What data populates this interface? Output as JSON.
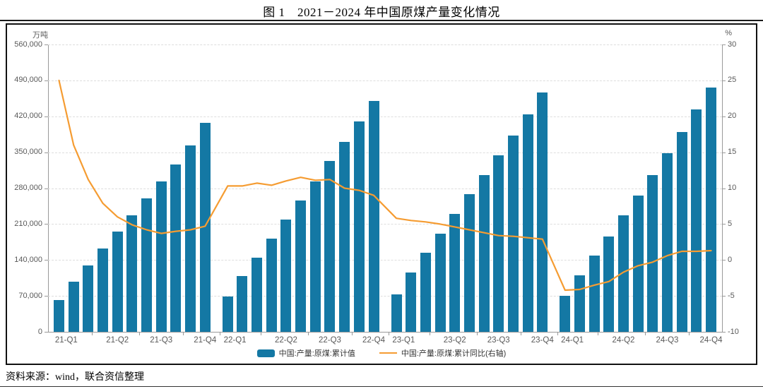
{
  "page": {
    "title": "图 1　2021－2024 年中国原煤产量变化情况",
    "source_note": "资料来源：wind，联合资信整理"
  },
  "chart_data": {
    "type": "combo-bar-line",
    "title": "图 1　2021－2024 年中国原煤产量变化情况",
    "grid": true,
    "legend_position": "bottom",
    "left_axis": {
      "unit": "万吨",
      "min": 0,
      "max": 560000,
      "ticks": [
        0,
        70000,
        140000,
        210000,
        280000,
        350000,
        420000,
        490000,
        560000
      ]
    },
    "right_axis": {
      "unit": "%",
      "min": -10,
      "max": 30,
      "ticks": [
        -10,
        -5,
        0,
        5,
        10,
        15,
        20,
        25,
        30
      ]
    },
    "x_tick_labels": [
      "21-Q1",
      "21-Q2",
      "21-Q3",
      "21-Q4",
      "22-Q1",
      "22-Q2",
      "22-Q3",
      "22-Q4",
      "23-Q1",
      "23-Q2",
      "23-Q3",
      "23-Q4",
      "24-Q1",
      "24-Q2",
      "24-Q3",
      "24-Q4"
    ],
    "years": [
      "2021",
      "2022",
      "2023",
      "2024"
    ],
    "series": [
      {
        "name": "中国:产量:原煤:累计值",
        "type": "bar",
        "axis": "left",
        "unit": "万吨",
        "color": "#1478A4",
        "values": {
          "2021": [
            61800,
            97100,
            129700,
            162400,
            195300,
            226600,
            259700,
            293000,
            325700,
            362800,
            407100
          ],
          "2022": [
            68700,
            108100,
            144800,
            181100,
            219200,
            256200,
            293300,
            332800,
            370700,
            409400,
            449600
          ],
          "2023": [
            73400,
            115300,
            153500,
            191200,
            230300,
            267700,
            305800,
            344200,
            383100,
            424400,
            466200
          ],
          "2024": [
            70500,
            110600,
            148500,
            186100,
            226600,
            266200,
            305000,
            347600,
            389200,
            432800,
            476000
          ]
        }
      },
      {
        "name": "中国:产量:原煤:累计同比(右轴)",
        "type": "line",
        "axis": "right",
        "unit": "%",
        "color": "#F59C32",
        "values": {
          "2021": [
            25.0,
            16.0,
            11.2,
            7.9,
            6.0,
            4.9,
            4.2,
            3.7,
            4.0,
            4.2,
            4.7
          ],
          "2022": [
            10.3,
            10.3,
            10.7,
            10.4,
            11.0,
            11.5,
            11.1,
            11.2,
            10.0,
            9.7,
            9.0
          ],
          "2023": [
            5.8,
            5.5,
            5.3,
            5.0,
            4.6,
            4.2,
            3.8,
            3.4,
            3.3,
            3.1,
            2.9
          ],
          "2024": [
            -4.2,
            -4.1,
            -3.5,
            -3.0,
            -1.7,
            -0.8,
            -0.3,
            0.6,
            1.2,
            1.2,
            1.3
          ]
        }
      }
    ]
  }
}
